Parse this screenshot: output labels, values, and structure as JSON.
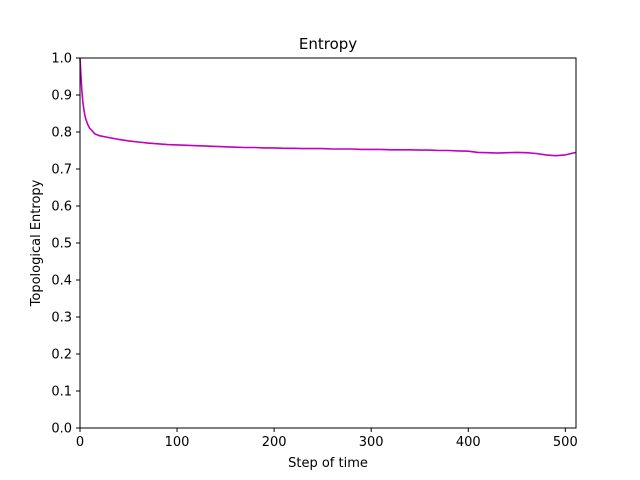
{
  "chart_data": {
    "type": "line",
    "title": "Entropy",
    "xlabel": "Step of time",
    "ylabel": "Topological Entropy",
    "xlim": [
      0,
      511
    ],
    "ylim": [
      0.0,
      1.0
    ],
    "x_ticks": [
      "0",
      "100",
      "200",
      "300",
      "400",
      "500"
    ],
    "y_ticks": [
      "0.0",
      "0.1",
      "0.2",
      "0.3",
      "0.4",
      "0.5",
      "0.6",
      "0.7",
      "0.8",
      "0.9",
      "1.0"
    ],
    "grid": false,
    "series": [
      {
        "color": "#bf00bf",
        "x": [
          0,
          1,
          2,
          3,
          4,
          5,
          6,
          8,
          10,
          12,
          15,
          20,
          30,
          40,
          50,
          60,
          70,
          80,
          90,
          100,
          110,
          120,
          130,
          140,
          150,
          160,
          170,
          180,
          190,
          200,
          210,
          220,
          230,
          240,
          250,
          260,
          270,
          280,
          290,
          300,
          310,
          320,
          330,
          340,
          350,
          360,
          370,
          380,
          390,
          400,
          410,
          420,
          430,
          440,
          450,
          460,
          470,
          480,
          490,
          500,
          511
        ],
        "values": [
          1.0,
          0.95,
          0.91,
          0.88,
          0.86,
          0.845,
          0.835,
          0.82,
          0.81,
          0.805,
          0.795,
          0.79,
          0.785,
          0.78,
          0.776,
          0.773,
          0.77,
          0.768,
          0.766,
          0.765,
          0.764,
          0.763,
          0.762,
          0.761,
          0.76,
          0.759,
          0.758,
          0.758,
          0.757,
          0.757,
          0.756,
          0.756,
          0.755,
          0.755,
          0.755,
          0.754,
          0.754,
          0.754,
          0.753,
          0.753,
          0.753,
          0.752,
          0.752,
          0.752,
          0.751,
          0.751,
          0.75,
          0.75,
          0.749,
          0.748,
          0.745,
          0.744,
          0.743,
          0.744,
          0.745,
          0.744,
          0.742,
          0.738,
          0.736,
          0.738,
          0.745
        ]
      }
    ]
  }
}
